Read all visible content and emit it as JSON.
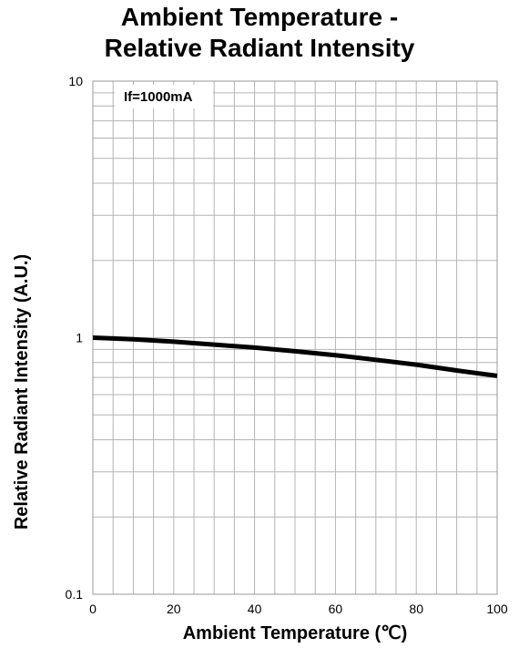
{
  "chart_data": {
    "type": "line",
    "title_lines": [
      "Ambient Temperature -",
      "Relative Radiant Intensity"
    ],
    "xlabel": "Ambient Temperature (℃)",
    "ylabel": "Relative Radiant Intensity (A.U.)",
    "xlim": [
      0,
      100
    ],
    "ylim": [
      0.1,
      10
    ],
    "y_scale": "log",
    "grid": true,
    "x_ticks": [
      "0",
      "20",
      "40",
      "60",
      "80",
      "100"
    ],
    "y_ticks": [
      "0.1",
      "1",
      "10"
    ],
    "annotation": "If=1000mA",
    "series": [
      {
        "color": "#000000",
        "x": [
          0,
          10,
          20,
          30,
          40,
          50,
          60,
          70,
          80,
          90,
          100
        ],
        "y": [
          1.0,
          0.985,
          0.965,
          0.94,
          0.915,
          0.885,
          0.855,
          0.82,
          0.785,
          0.745,
          0.71
        ]
      }
    ]
  }
}
